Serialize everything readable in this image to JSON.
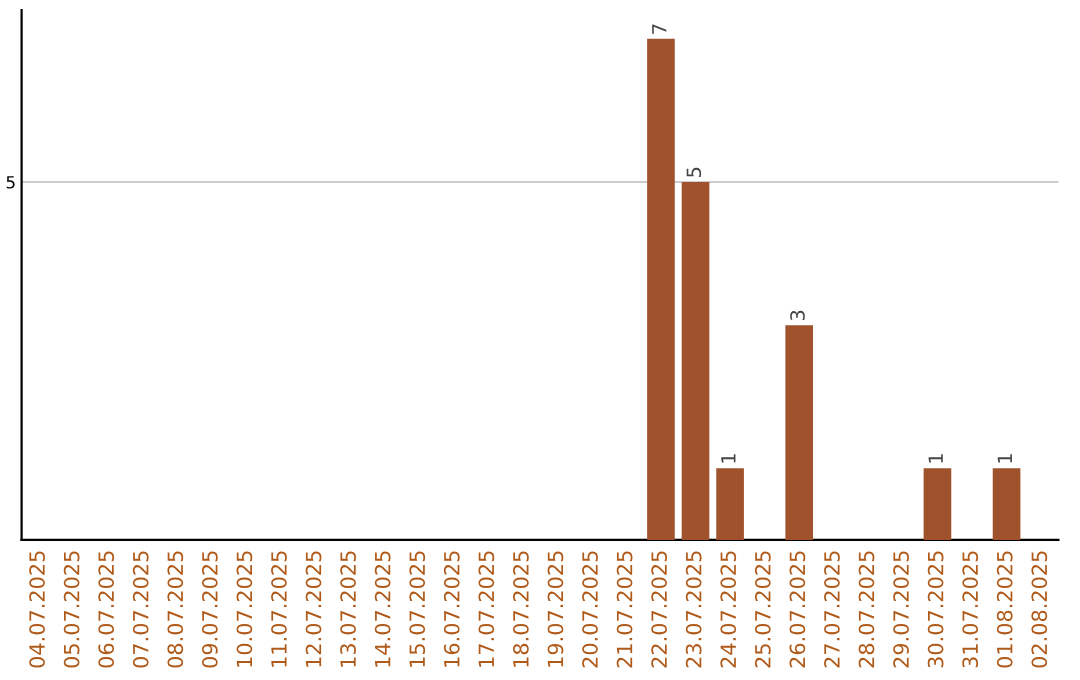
{
  "chart_data": {
    "type": "bar",
    "categories": [
      "04.07.2025",
      "05.07.2025",
      "06.07.2025",
      "07.07.2025",
      "08.07.2025",
      "09.07.2025",
      "10.07.2025",
      "11.07.2025",
      "12.07.2025",
      "13.07.2025",
      "14.07.2025",
      "15.07.2025",
      "16.07.2025",
      "17.07.2025",
      "18.07.2025",
      "19.07.2025",
      "20.07.2025",
      "21.07.2025",
      "22.07.2025",
      "23.07.2025",
      "24.07.2025",
      "25.07.2025",
      "26.07.2025",
      "27.07.2025",
      "28.07.2025",
      "29.07.2025",
      "30.07.2025",
      "31.07.2025",
      "01.08.2025",
      "02.08.2025"
    ],
    "values": [
      null,
      null,
      null,
      null,
      null,
      null,
      null,
      null,
      null,
      null,
      null,
      null,
      null,
      null,
      null,
      null,
      null,
      null,
      7,
      5,
      1,
      null,
      3,
      null,
      null,
      null,
      1,
      null,
      1,
      null
    ],
    "data_labels": true,
    "color": "#a0522d",
    "ylim": [
      0,
      7.4
    ],
    "yticks": [
      5
    ],
    "grid": "y"
  }
}
